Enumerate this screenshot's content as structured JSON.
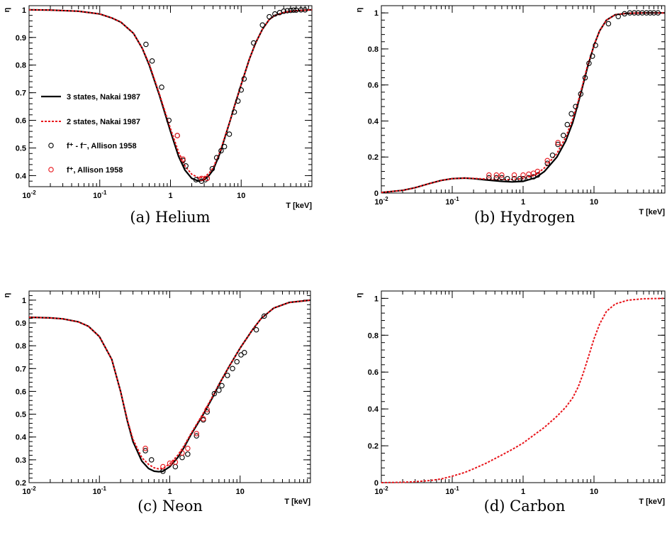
{
  "colors": {
    "black": "#000000",
    "red": "#e8141a"
  },
  "chart_data": [
    {
      "type": "line",
      "caption": "(a) Helium",
      "xlabel": "T [keV]",
      "ylabel": "η",
      "xscale": "log",
      "xlim": [
        0.01,
        100
      ],
      "ylim": [
        0.36,
        1.015
      ],
      "xticks": [
        {
          "v": 0.01,
          "base": "10",
          "exp": "-2"
        },
        {
          "v": 0.1,
          "base": "10",
          "exp": "-1"
        },
        {
          "v": 1,
          "base": "1",
          "exp": ""
        },
        {
          "v": 10,
          "base": "10",
          "exp": ""
        }
      ],
      "yticks": [
        {
          "v": 0.4,
          "label": "0.4"
        },
        {
          "v": 0.5,
          "label": "0.5"
        },
        {
          "v": 0.6,
          "label": "0.6"
        },
        {
          "v": 0.7,
          "label": "0.7"
        },
        {
          "v": 0.8,
          "label": "0.8"
        },
        {
          "v": 0.9,
          "label": "0.9"
        },
        {
          "v": 1.0,
          "label": "1"
        }
      ],
      "legend": {
        "position": "left",
        "entries": [
          {
            "label": "3 states, Nakai 1987",
            "kind": "solid"
          },
          {
            "label": "2 states, Nakai 1987",
            "kind": "dotted"
          },
          {
            "label": "f⁺ - f⁻, Allison 1958",
            "kind": "circle-black"
          },
          {
            "label": "f⁺, Allison 1958",
            "kind": "circle-red"
          }
        ]
      },
      "series": [
        {
          "name": "3 states, Nakai 1987",
          "style": "solid",
          "color": "#000000",
          "x": [
            0.01,
            0.02,
            0.05,
            0.1,
            0.15,
            0.2,
            0.3,
            0.4,
            0.5,
            0.7,
            1.0,
            1.3,
            1.6,
            2.0,
            2.5,
            3.0,
            3.5,
            4.0,
            5.0,
            6.0,
            7.0,
            8.0,
            10,
            13,
            16,
            20,
            25,
            30,
            40,
            50,
            70,
            100
          ],
          "y": [
            1.0,
            0.999,
            0.995,
            0.985,
            0.97,
            0.955,
            0.915,
            0.86,
            0.8,
            0.69,
            0.56,
            0.47,
            0.42,
            0.39,
            0.38,
            0.385,
            0.4,
            0.42,
            0.48,
            0.545,
            0.6,
            0.65,
            0.73,
            0.82,
            0.88,
            0.93,
            0.965,
            0.98,
            0.99,
            0.995,
            0.998,
            1.0
          ]
        },
        {
          "name": "2 states, Nakai 1987",
          "style": "dotted",
          "color": "#e8141a",
          "x": [
            0.01,
            0.02,
            0.05,
            0.1,
            0.15,
            0.2,
            0.3,
            0.4,
            0.5,
            0.7,
            1.0,
            1.3,
            1.6,
            2.0,
            2.5,
            3.0,
            3.5,
            4.0,
            5.0,
            6.0,
            7.0,
            8.0,
            10,
            13,
            16,
            20,
            25,
            30,
            40,
            50,
            70,
            100
          ],
          "y": [
            1.0,
            0.999,
            0.995,
            0.985,
            0.97,
            0.955,
            0.915,
            0.86,
            0.805,
            0.695,
            0.57,
            0.485,
            0.435,
            0.405,
            0.392,
            0.395,
            0.408,
            0.428,
            0.485,
            0.548,
            0.6,
            0.65,
            0.73,
            0.82,
            0.88,
            0.93,
            0.965,
            0.98,
            0.99,
            0.995,
            0.998,
            1.0
          ]
        },
        {
          "name": "f⁺ - f⁻, Allison 1958",
          "style": "circle",
          "color": "#000000",
          "x": [
            0.45,
            0.55,
            0.75,
            0.95,
            1.25,
            1.5,
            1.65,
            2.3,
            2.75,
            3.1,
            3.3,
            3.9,
            4.5,
            5.2,
            5.8,
            6.8,
            8.0,
            9.0,
            10,
            11,
            15,
            20,
            25,
            30,
            35,
            40,
            45,
            50,
            55,
            60,
            70,
            80
          ],
          "y": [
            0.875,
            0.815,
            0.72,
            0.6,
            0.545,
            0.455,
            0.435,
            0.385,
            0.38,
            0.385,
            0.39,
            0.425,
            0.465,
            0.49,
            0.505,
            0.55,
            0.63,
            0.67,
            0.71,
            0.75,
            0.88,
            0.945,
            0.975,
            0.985,
            0.99,
            0.995,
            0.997,
            0.998,
            0.999,
            0.999,
            1.0,
            1.0
          ]
        },
        {
          "name": "f⁺, Allison 1958",
          "style": "circle",
          "color": "#e8141a",
          "x": [
            1.25,
            1.5,
            2.75,
            3.3
          ],
          "y": [
            0.545,
            0.46,
            0.39,
            0.39
          ]
        }
      ]
    },
    {
      "type": "line",
      "caption": "(b) Hydrogen",
      "xlabel": "T [keV]",
      "ylabel": "η",
      "xscale": "log",
      "xlim": [
        0.01,
        100
      ],
      "ylim": [
        0,
        1.04
      ],
      "xticks": [
        {
          "v": 0.01,
          "base": "10",
          "exp": "-2"
        },
        {
          "v": 0.1,
          "base": "10",
          "exp": "-1"
        },
        {
          "v": 1,
          "base": "1",
          "exp": ""
        },
        {
          "v": 10,
          "base": "10",
          "exp": ""
        }
      ],
      "yticks": [
        {
          "v": 0,
          "label": "0"
        },
        {
          "v": 0.2,
          "label": "0.2"
        },
        {
          "v": 0.4,
          "label": "0.4"
        },
        {
          "v": 0.6,
          "label": "0.6"
        },
        {
          "v": 0.8,
          "label": "0.8"
        },
        {
          "v": 1.0,
          "label": "1"
        }
      ],
      "series": [
        {
          "name": "3 states",
          "style": "solid",
          "color": "#000000",
          "x": [
            0.01,
            0.02,
            0.03,
            0.05,
            0.07,
            0.1,
            0.15,
            0.2,
            0.3,
            0.5,
            0.7,
            1.0,
            1.5,
            2.0,
            3.0,
            4.0,
            5.0,
            6.0,
            7.0,
            8.0,
            10,
            12,
            15,
            20,
            30,
            50,
            100
          ],
          "y": [
            0.003,
            0.015,
            0.03,
            0.055,
            0.07,
            0.08,
            0.083,
            0.08,
            0.073,
            0.065,
            0.062,
            0.065,
            0.085,
            0.12,
            0.2,
            0.29,
            0.39,
            0.5,
            0.6,
            0.69,
            0.82,
            0.9,
            0.96,
            0.99,
            0.998,
            1.0,
            1.0
          ]
        },
        {
          "name": "2 states",
          "style": "dotted",
          "color": "#e8141a",
          "x": [
            0.01,
            0.02,
            0.03,
            0.05,
            0.07,
            0.1,
            0.15,
            0.2,
            0.3,
            0.5,
            0.7,
            1.0,
            1.5,
            2.0,
            3.0,
            4.0,
            5.0,
            6.0,
            7.0,
            8.0,
            10,
            12,
            15,
            20,
            30,
            50,
            100
          ],
          "y": [
            0.003,
            0.015,
            0.03,
            0.055,
            0.07,
            0.08,
            0.083,
            0.081,
            0.078,
            0.075,
            0.075,
            0.08,
            0.1,
            0.14,
            0.22,
            0.31,
            0.41,
            0.51,
            0.61,
            0.7,
            0.82,
            0.9,
            0.96,
            0.99,
            0.998,
            1.0,
            1.0
          ]
        },
        {
          "name": "f⁺ - f⁻",
          "style": "circle",
          "color": "#000000",
          "x": [
            0.33,
            0.42,
            0.5,
            0.6,
            0.75,
            0.9,
            1.0,
            1.2,
            1.4,
            1.6,
            2.2,
            2.6,
            3.1,
            3.7,
            4.2,
            4.8,
            5.5,
            6.5,
            7.5,
            8.5,
            9.5,
            10.5,
            16,
            22,
            27,
            32,
            37,
            42,
            48,
            55,
            62,
            70,
            80
          ],
          "y": [
            0.085,
            0.085,
            0.085,
            0.08,
            0.08,
            0.08,
            0.08,
            0.085,
            0.09,
            0.1,
            0.165,
            0.21,
            0.27,
            0.32,
            0.38,
            0.44,
            0.48,
            0.55,
            0.64,
            0.72,
            0.76,
            0.82,
            0.94,
            0.98,
            0.995,
            1.0,
            1.0,
            1.0,
            1.0,
            1.0,
            1.0,
            1.0,
            1.0
          ]
        },
        {
          "name": "f⁺",
          "style": "circle",
          "color": "#e8141a",
          "x": [
            0.33,
            0.42,
            0.5,
            0.75,
            1.0,
            1.2,
            1.4,
            1.6,
            2.2,
            3.1
          ],
          "y": [
            0.1,
            0.1,
            0.1,
            0.1,
            0.1,
            0.105,
            0.11,
            0.12,
            0.18,
            0.28
          ]
        }
      ]
    },
    {
      "type": "line",
      "caption": "(c) Neon",
      "xlabel": "T [keV]",
      "ylabel": "η",
      "xscale": "log",
      "xlim": [
        0.01,
        100
      ],
      "ylim": [
        0.2,
        1.04
      ],
      "xticks": [
        {
          "v": 0.01,
          "base": "10",
          "exp": "-2"
        },
        {
          "v": 0.1,
          "base": "10",
          "exp": "-1"
        },
        {
          "v": 1,
          "base": "1",
          "exp": ""
        },
        {
          "v": 10,
          "base": "10",
          "exp": ""
        }
      ],
      "yticks": [
        {
          "v": 0.2,
          "label": "0.2"
        },
        {
          "v": 0.3,
          "label": "0.3"
        },
        {
          "v": 0.4,
          "label": "0.4"
        },
        {
          "v": 0.5,
          "label": "0.5"
        },
        {
          "v": 0.6,
          "label": "0.6"
        },
        {
          "v": 0.7,
          "label": "0.7"
        },
        {
          "v": 0.8,
          "label": "0.8"
        },
        {
          "v": 0.9,
          "label": "0.9"
        },
        {
          "v": 1.0,
          "label": "1"
        }
      ],
      "series": [
        {
          "name": "3 states",
          "style": "solid",
          "color": "#000000",
          "x": [
            0.01,
            0.02,
            0.03,
            0.05,
            0.07,
            0.1,
            0.15,
            0.2,
            0.25,
            0.3,
            0.4,
            0.5,
            0.6,
            0.7,
            0.8,
            1.0,
            1.3,
            1.6,
            2.0,
            3.0,
            4.0,
            5.0,
            7.0,
            10,
            15,
            20,
            30,
            50,
            100
          ],
          "y": [
            0.925,
            0.922,
            0.918,
            0.905,
            0.885,
            0.84,
            0.74,
            0.6,
            0.47,
            0.38,
            0.295,
            0.262,
            0.25,
            0.248,
            0.25,
            0.27,
            0.31,
            0.355,
            0.41,
            0.5,
            0.57,
            0.63,
            0.71,
            0.79,
            0.87,
            0.92,
            0.965,
            0.99,
            1.0
          ]
        },
        {
          "name": "2 states",
          "style": "dotted",
          "color": "#e8141a",
          "x": [
            0.01,
            0.02,
            0.03,
            0.05,
            0.07,
            0.1,
            0.15,
            0.2,
            0.25,
            0.3,
            0.4,
            0.5,
            0.6,
            0.7,
            0.8,
            1.0,
            1.3,
            1.6,
            2.0,
            3.0,
            4.0,
            5.0,
            7.0,
            10,
            15,
            20,
            30,
            50,
            100
          ],
          "y": [
            0.925,
            0.922,
            0.918,
            0.905,
            0.885,
            0.84,
            0.74,
            0.6,
            0.475,
            0.39,
            0.31,
            0.28,
            0.265,
            0.26,
            0.263,
            0.282,
            0.32,
            0.362,
            0.415,
            0.505,
            0.575,
            0.63,
            0.71,
            0.79,
            0.87,
            0.92,
            0.965,
            0.99,
            1.0
          ]
        },
        {
          "name": "f⁺ - f⁻",
          "style": "circle",
          "color": "#000000",
          "x": [
            0.45,
            0.55,
            0.8,
            1.2,
            1.5,
            1.8,
            2.4,
            3.0,
            3.4,
            4.3,
            5.0,
            5.5,
            6.6,
            7.8,
            9.0,
            10.3,
            11.5,
            17,
            22
          ],
          "y": [
            0.34,
            0.3,
            0.25,
            0.27,
            0.31,
            0.325,
            0.405,
            0.475,
            0.51,
            0.59,
            0.605,
            0.625,
            0.67,
            0.7,
            0.73,
            0.76,
            0.77,
            0.87,
            0.93
          ]
        },
        {
          "name": "f⁺",
          "style": "circle",
          "color": "#e8141a",
          "x": [
            0.45,
            0.8,
            1.0,
            1.2,
            1.5,
            1.8,
            2.4,
            3.0,
            3.4
          ],
          "y": [
            0.35,
            0.27,
            0.285,
            0.29,
            0.33,
            0.35,
            0.415,
            0.48,
            0.52
          ]
        }
      ]
    },
    {
      "type": "line",
      "caption": "(d) Carbon",
      "xlabel": "T [keV]",
      "ylabel": "η",
      "xscale": "log",
      "xlim": [
        0.01,
        100
      ],
      "ylim": [
        0,
        1.04
      ],
      "xticks": [
        {
          "v": 0.01,
          "base": "10",
          "exp": "-2"
        },
        {
          "v": 0.1,
          "base": "10",
          "exp": "-1"
        },
        {
          "v": 1,
          "base": "1",
          "exp": ""
        },
        {
          "v": 10,
          "base": "10",
          "exp": ""
        }
      ],
      "yticks": [
        {
          "v": 0,
          "label": "0"
        },
        {
          "v": 0.2,
          "label": "0.2"
        },
        {
          "v": 0.4,
          "label": "0.4"
        },
        {
          "v": 0.6,
          "label": "0.6"
        },
        {
          "v": 0.8,
          "label": "0.8"
        },
        {
          "v": 1.0,
          "label": "1"
        }
      ],
      "series": [
        {
          "name": "2 states",
          "style": "dotted",
          "color": "#e8141a",
          "x": [
            0.01,
            0.02,
            0.03,
            0.05,
            0.07,
            0.1,
            0.15,
            0.2,
            0.3,
            0.5,
            0.7,
            1.0,
            1.5,
            2.0,
            3.0,
            4.0,
            5.0,
            6.0,
            7.0,
            8.0,
            10,
            12,
            15,
            20,
            30,
            50,
            100
          ],
          "y": [
            0.0,
            0.002,
            0.005,
            0.012,
            0.02,
            0.035,
            0.055,
            0.075,
            0.105,
            0.15,
            0.18,
            0.215,
            0.265,
            0.3,
            0.36,
            0.41,
            0.46,
            0.52,
            0.59,
            0.66,
            0.78,
            0.86,
            0.93,
            0.97,
            0.99,
            0.998,
            1.0
          ]
        }
      ]
    }
  ]
}
